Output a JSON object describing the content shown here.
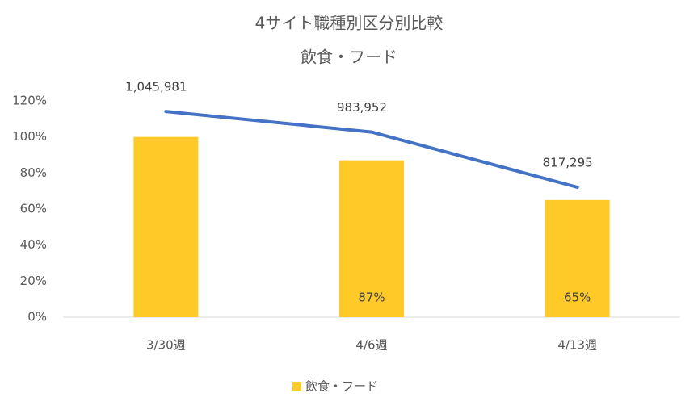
{
  "chart_data": {
    "type": "bar",
    "title": "4サイト職種別区分別比較",
    "subtitle": "飲食・フード",
    "categories": [
      "3/30週",
      "4/6週",
      "4/13週"
    ],
    "series": [
      {
        "name": "飲食・フード",
        "type": "bar",
        "color": "#ffca28",
        "values": [
          100,
          87,
          65
        ],
        "value_labels": [
          null,
          "87%",
          "65%"
        ]
      },
      {
        "type": "line",
        "axis": "y2",
        "color": "#4472c4",
        "values": [
          1045981,
          983952,
          817295
        ],
        "value_labels": [
          "1,045,981",
          "983,952",
          "817,295"
        ]
      }
    ],
    "ylim": [
      0,
      120
    ],
    "yticks": [
      {
        "value": 0,
        "label": "0%"
      },
      {
        "value": 20,
        "label": "20%"
      },
      {
        "value": 40,
        "label": "40%"
      },
      {
        "value": 60,
        "label": "60%"
      },
      {
        "value": 80,
        "label": "80%"
      },
      {
        "value": 100,
        "label": "100%"
      },
      {
        "value": 120,
        "label": "120%"
      }
    ],
    "y2lim": [
      425000,
      1078000
    ],
    "grid": false,
    "legend": "bottom"
  }
}
